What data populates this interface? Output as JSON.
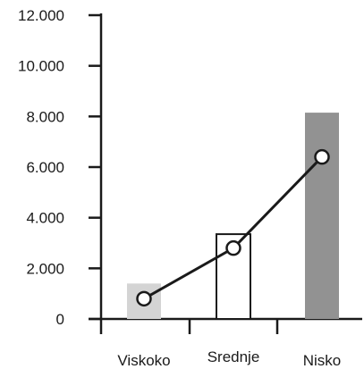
{
  "chart_data": {
    "type": "bar",
    "categories": [
      "Viskoko",
      "Srednje",
      "Nisko"
    ],
    "y_tick_labels": [
      "0",
      "2.000",
      "4.000",
      "6.000",
      "8.000",
      "10.000",
      "12.000"
    ],
    "y_ticks": [
      0,
      2000,
      4000,
      6000,
      8000,
      10000,
      12000
    ],
    "ylim": [
      0,
      12000
    ],
    "series": [
      {
        "type": "bar",
        "values": [
          1400,
          3350,
          8150
        ],
        "fills": [
          "#d4d4d4",
          "#ffffff",
          "#929292"
        ],
        "strokes": [
          "none",
          "#1a1a1a",
          "none"
        ]
      },
      {
        "type": "line",
        "values": [
          800,
          2800,
          6400
        ],
        "color": "#1a1a1a",
        "marker": "open-circle"
      }
    ],
    "grid": false,
    "legend": "none"
  }
}
